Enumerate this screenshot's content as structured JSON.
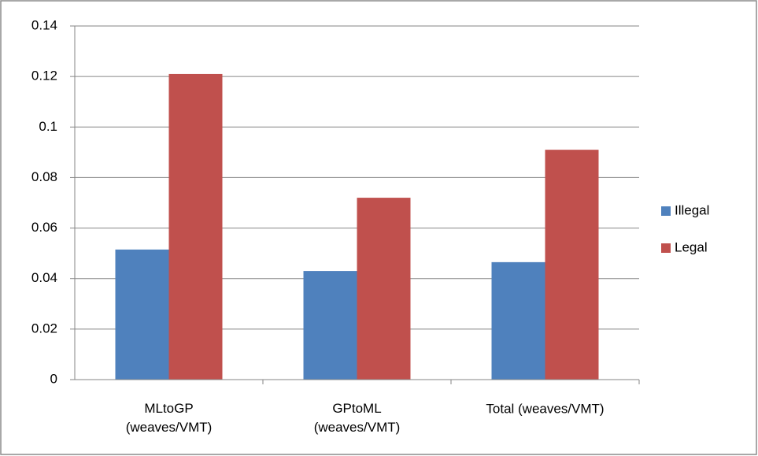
{
  "chart_data": {
    "type": "bar",
    "categories": [
      "MLtoGP\n(weaves/VMT)",
      "GPtoML\n(weaves/VMT)",
      "Total (weaves/VMT)"
    ],
    "series": [
      {
        "name": "Illegal",
        "color": "#4f81bd",
        "values": [
          0.0515,
          0.043,
          0.0465
        ]
      },
      {
        "name": "Legal",
        "color": "#c0504d",
        "values": [
          0.121,
          0.072,
          0.091
        ]
      }
    ],
    "ylim": [
      0,
      0.14
    ],
    "yticks": [
      0,
      0.02,
      0.04,
      0.06,
      0.08,
      0.1,
      0.12,
      0.14
    ],
    "grid": true,
    "legend": "right"
  }
}
